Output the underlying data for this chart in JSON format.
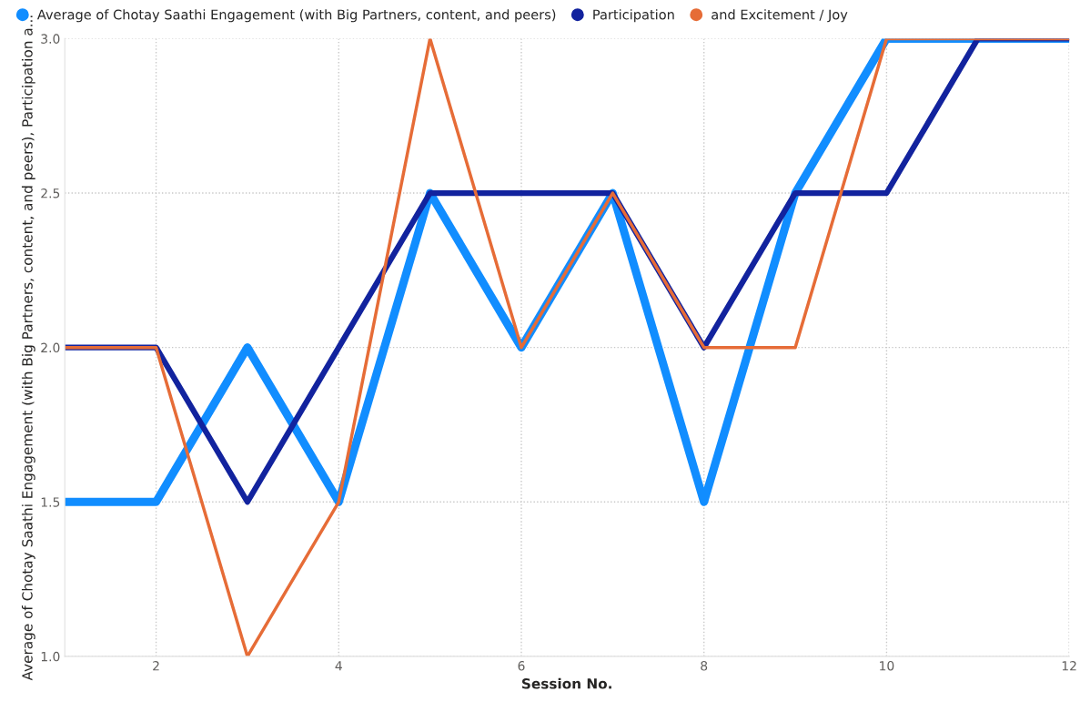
{
  "chart_data": {
    "type": "line",
    "xlabel": "Session No.",
    "ylabel": "Average of Chotay Saathi Engagement (with Big Partners, content, and peers), Participation a...",
    "x": [
      1,
      2,
      3,
      4,
      5,
      6,
      7,
      8,
      9,
      10,
      11,
      12
    ],
    "series": [
      {
        "name": "Average of Chotay Saathi Engagement (with Big Partners, content, and peers)",
        "color": "#118dff",
        "values": [
          1.5,
          1.5,
          2,
          1.5,
          2.5,
          2,
          2.5,
          1.5,
          2.5,
          3,
          3,
          3
        ]
      },
      {
        "name": "Participation",
        "color": "#12239e",
        "values": [
          2,
          2,
          1.5,
          2,
          2.5,
          2.5,
          2.5,
          2,
          2.5,
          2.5,
          3,
          3
        ]
      },
      {
        "name": "and Excitement / Joy",
        "color": "#e66c37",
        "values": [
          2,
          2,
          1,
          1.5,
          3,
          2,
          2.5,
          2,
          2,
          3,
          3,
          3
        ]
      }
    ],
    "xlim": [
      1,
      12
    ],
    "xticks": [
      2,
      4,
      6,
      8,
      10,
      12
    ],
    "ylim": [
      1,
      3
    ],
    "yticks": [
      {
        "value": 1,
        "label": "1.0"
      },
      {
        "value": 1.5,
        "label": "1.5"
      },
      {
        "value": 2,
        "label": "2.0"
      },
      {
        "value": 2.5,
        "label": "2.5"
      },
      {
        "value": 3,
        "label": "3.0"
      }
    ],
    "grid": true,
    "legend": "top left",
    "line_style": "solid"
  }
}
